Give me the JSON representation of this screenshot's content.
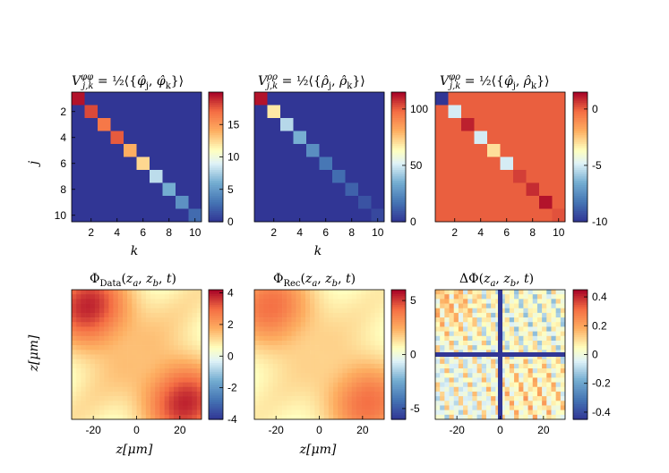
{
  "chart_data": [
    {
      "type": "heatmap",
      "panel": "top-left",
      "title": "V_{j,k}^{φφ} = 1/2 ⟨{φ̂_j, φ̂_k}⟩",
      "xlabel": "k",
      "ylabel": "j",
      "x_ticks": [
        "2",
        "4",
        "6",
        "8",
        "10"
      ],
      "y_ticks": [
        "2",
        "4",
        "6",
        "8",
        "10"
      ],
      "colorbar_range": [
        0,
        20
      ],
      "colorbar_ticks": [
        "0",
        "5",
        "10",
        "15"
      ],
      "off_diagonal_value": 0,
      "diagonal_values": [
        19.5,
        18,
        16.5,
        17.5,
        14,
        12.5,
        8,
        6,
        4.5,
        2.5
      ]
    },
    {
      "type": "heatmap",
      "panel": "top-middle",
      "title": "V_{j,k}^{ρρ} = 1/2 ⟨{ρ̂_j, ρ̂_k}⟩",
      "xlabel": "k",
      "ylabel": "",
      "x_ticks": [
        "2",
        "4",
        "6",
        "8",
        "10"
      ],
      "y_ticks": [],
      "colorbar_range": [
        0,
        115
      ],
      "colorbar_ticks": [
        "0",
        "50",
        "100"
      ],
      "off_diagonal_value": 0,
      "diagonal_values": [
        112,
        68,
        45,
        35,
        25,
        18,
        15,
        12,
        8,
        5
      ]
    },
    {
      "type": "heatmap",
      "panel": "top-right",
      "title": "V_{j,k}^{φρ} = 1/2 ⟨{φ̂_j, ρ̂_k}⟩",
      "xlabel": "",
      "ylabel": "",
      "x_ticks": [
        "2",
        "4",
        "6",
        "8",
        "10"
      ],
      "y_ticks": [],
      "colorbar_range": [
        -10,
        1.5
      ],
      "colorbar_ticks": [
        "0",
        "-5",
        "-10"
      ],
      "off_diagonal_value": 0,
      "diagonal_values": [
        -10,
        -5,
        1,
        -5,
        -3,
        -5,
        0.5,
        0.8,
        1.2,
        0.2
      ]
    },
    {
      "type": "heatmap",
      "panel": "bottom-left",
      "title": "Φ_Data(z_a, z_b, t)",
      "xlabel": "z[μm]",
      "ylabel": "z[μm]",
      "x_ticks": [
        "-20",
        "0",
        "20"
      ],
      "y_ticks": [],
      "colorbar_range": [
        -4,
        4.2
      ],
      "colorbar_ticks": [
        "4",
        "2",
        "0",
        "-2",
        "-4"
      ],
      "field_amplitude": 4
    },
    {
      "type": "heatmap",
      "panel": "bottom-middle",
      "title": "Φ_Rec(z_a, z_b, t)",
      "xlabel": "z[μm]",
      "ylabel": "",
      "x_ticks": [
        "-20",
        "0",
        "20"
      ],
      "y_ticks": [],
      "colorbar_range": [
        -6,
        6
      ],
      "colorbar_ticks": [
        "5",
        "0",
        "-5"
      ],
      "field_amplitude": 4.3
    },
    {
      "type": "heatmap",
      "panel": "bottom-right",
      "title": "ΔΦ(z_a, z_b, t)",
      "xlabel": "",
      "ylabel": "",
      "x_ticks": [
        "-20",
        "0",
        "20"
      ],
      "y_ticks": [],
      "colorbar_range": [
        -0.45,
        0.45
      ],
      "colorbar_ticks": [
        "0.4",
        "0.2",
        "0",
        "-0.2",
        "-0.4"
      ],
      "field_amplitude": 0.35,
      "cross_value": -0.45
    }
  ]
}
